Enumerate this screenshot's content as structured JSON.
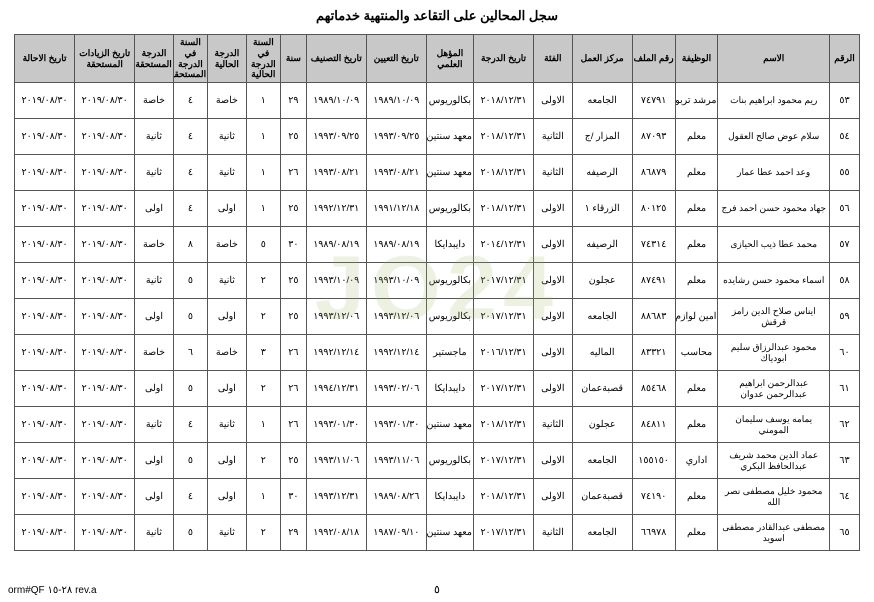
{
  "title": "سجل المحالين على التقاعد والمنتهية خدماتهم",
  "page_number": "٥",
  "form_code": "orm#QF ٢٨-١٥ rev.a",
  "headers": [
    "الرقم",
    "الاسم",
    "الوظيفة",
    "رقم الملف",
    "مركز العمل",
    "الفئة",
    "تاريخ الدرجة",
    "المؤهل العلمي",
    "تاريخ التعيين",
    "تاريخ التصنيف",
    "سنة",
    "السنة في الدرجة الحالية",
    "الدرجة الحالية",
    "السنة في الدرجة المستحقة",
    "الدرجة المستحقة",
    "تاريخ الزيادات المستحقة",
    "تاريخ الاحالة"
  ],
  "rows": [
    [
      "٥٣",
      "ريم محمود ابراهيم بنات",
      "مرشد تربوي",
      "٧٤٧٩١",
      "الجامعه",
      "الاولى",
      "٢٠١٨/١٢/٣١",
      "بكالوريوس",
      "١٩٨٩/١٠/٠٩",
      "١٩٨٩/١٠/٠٩",
      "٢٩",
      "١",
      "خاصة",
      "٤",
      "خاصة",
      "٢٠١٩/٠٨/٣٠",
      "٢٠١٩/٠٨/٣٠"
    ],
    [
      "٥٤",
      "سلام عوض صالح العقول",
      "معلم",
      "٨٧٠٩٣",
      "المزار /ج",
      "الثانية",
      "٢٠١٨/١٢/٣١",
      "معهد سنتين",
      "١٩٩٣/٠٩/٢٥",
      "١٩٩٣/٠٩/٢٥",
      "٢٥",
      "١",
      "ثانية",
      "٤",
      "ثانية",
      "٢٠١٩/٠٨/٣٠",
      "٢٠١٩/٠٨/٣٠"
    ],
    [
      "٥٥",
      "وعد احمد عطا عمار",
      "معلم",
      "٨٦٨٧٩",
      "الرصيفه",
      "الثانية",
      "٢٠١٨/١٢/٣١",
      "معهد سنتين",
      "١٩٩٣/٠٨/٢١",
      "١٩٩٣/٠٨/٢١",
      "٢٦",
      "١",
      "ثانية",
      "٤",
      "ثانية",
      "٢٠١٩/٠٨/٣٠",
      "٢٠١٩/٠٨/٣٠"
    ],
    [
      "٥٦",
      "جهاد محمود حسن احمد فرج",
      "معلم",
      "٨٠١٢٥",
      "الزرقاء ١",
      "الاولى",
      "٢٠١٨/١٢/٣١",
      "بكالوريوس",
      "١٩٩١/١٢/١٨",
      "١٩٩٢/١٢/٣١",
      "٢٥",
      "١",
      "اولى",
      "٤",
      "اولى",
      "٢٠١٩/٠٨/٣٠",
      "٢٠١٩/٠٨/٣٠"
    ],
    [
      "٥٧",
      "محمد عطا ذيب الحيازى",
      "معلم",
      "٧٤٣١٤",
      "الرصيفه",
      "الاولى",
      "٢٠١٤/١٢/٣١",
      "دايبدايكا",
      "١٩٨٩/٠٨/١٩",
      "١٩٨٩/٠٨/١٩",
      "٣٠",
      "٥",
      "خاصة",
      "٨",
      "خاصة",
      "٢٠١٩/٠٨/٣٠",
      "٢٠١٩/٠٨/٣٠"
    ],
    [
      "٥٨",
      "اسماء محمود حسن رشايده",
      "معلم",
      "٨٧٤٩١",
      "عجلون",
      "الاولى",
      "٢٠١٧/١٢/٣١",
      "بكالوريوس",
      "١٩٩٣/١٠/٠٩",
      "١٩٩٣/١٠/٠٩",
      "٢٥",
      "٢",
      "ثانية",
      "٥",
      "ثانية",
      "٢٠١٩/٠٨/٣٠",
      "٢٠١٩/٠٨/٣٠"
    ],
    [
      "٥٩",
      "ايناس صلاح الدين رامز قرقش",
      "امين لوازم مدرسه",
      "٨٨٦٨٣",
      "الجامعه",
      "الاولى",
      "٢٠١٧/١٢/٣١",
      "بكالوريوس",
      "١٩٩٣/١٢/٠٦",
      "١٩٩٣/١٢/٠٦",
      "٢٥",
      "٢",
      "اولى",
      "٥",
      "اولى",
      "٢٠١٩/٠٨/٣٠",
      "٢٠١٩/٠٨/٣٠"
    ],
    [
      "٦٠",
      "محمود عبدالرزاق سليم ابودياك",
      "محاسب",
      "٨٣٣٢١",
      "الماليه",
      "الاولى",
      "٢٠١٦/١٢/٣١",
      "ماجستير",
      "١٩٩٢/١٢/١٤",
      "١٩٩٢/١٢/١٤",
      "٢٦",
      "٣",
      "خاصة",
      "٦",
      "خاصة",
      "٢٠١٩/٠٨/٣٠",
      "٢٠١٩/٠٨/٣٠"
    ],
    [
      "٦١",
      "عبدالرحمن ابراهيم عبدالرحمن عدوان",
      "معلم",
      "٨٥٤٦٨",
      "قصبةعمان",
      "الاولى",
      "٢٠١٧/١٢/٣١",
      "دايبدايكا",
      "١٩٩٣/٠٢/٠٦",
      "١٩٩٤/١٢/٣١",
      "٢٦",
      "٢",
      "اولى",
      "٥",
      "اولى",
      "٢٠١٩/٠٨/٣٠",
      "٢٠١٩/٠٨/٣٠"
    ],
    [
      "٦٢",
      "يمامه يوسف سليمان المومني",
      "معلم",
      "٨٤٨١١",
      "عجلون",
      "الثانية",
      "٢٠١٨/١٢/٣١",
      "معهد سنتين",
      "١٩٩٣/٠١/٣٠",
      "١٩٩٣/٠١/٣٠",
      "٢٦",
      "١",
      "ثانية",
      "٤",
      "ثانية",
      "٢٠١٩/٠٨/٣٠",
      "٢٠١٩/٠٨/٣٠"
    ],
    [
      "٦٣",
      "عماد الدين محمد شريف عبدالحافظ البكري",
      "اداري",
      "١٥٥١٥٠",
      "الجامعه",
      "الاولى",
      "٢٠١٧/١٢/٣١",
      "بكالوريوس",
      "١٩٩٣/١١/٠٦",
      "١٩٩٣/١١/٠٦",
      "٢٥",
      "٢",
      "اولى",
      "٥",
      "اولى",
      "٢٠١٩/٠٨/٣٠",
      "٢٠١٩/٠٨/٣٠"
    ],
    [
      "٦٤",
      "محمود خليل مصطفى نصر الله",
      "معلم",
      "٧٤١٩٠",
      "قصبةعمان",
      "الاولى",
      "٢٠١٨/١٢/٣١",
      "دايبدايكا",
      "١٩٨٩/٠٨/٢٦",
      "١٩٩٣/١٢/٣١",
      "٣٠",
      "١",
      "اولى",
      "٤",
      "اولى",
      "٢٠١٩/٠٨/٣٠",
      "٢٠١٩/٠٨/٣٠"
    ],
    [
      "٦٥",
      "مصطفى عبدالقادر مصطفى اسويد",
      "معلم",
      "٦٦٩٧٨",
      "الجامعه",
      "الثانية",
      "٢٠١٧/١٢/٣١",
      "معهد سنتين",
      "١٩٨٧/٠٩/١٠",
      "١٩٩٢/٠٨/١٨",
      "٢٩",
      "٢",
      "ثانية",
      "٥",
      "ثانية",
      "٢٠١٩/٠٨/٣٠",
      "٢٠١٩/٠٨/٣٠"
    ]
  ],
  "col_classes": [
    "col-seq",
    "col-name",
    "col-job",
    "col-file",
    "col-center",
    "col-cat",
    "col-degdate",
    "col-qual",
    "col-appoint",
    "col-class",
    "col-year",
    "col-yearin",
    "col-curdeg",
    "col-yeardue",
    "col-duedeg",
    "col-raisedate",
    "col-refdate"
  ]
}
